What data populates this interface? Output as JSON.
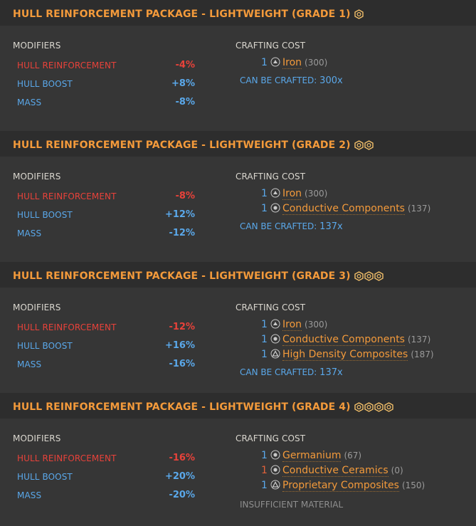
{
  "labels": {
    "modifiers": "MODIFIERS",
    "crafting_cost": "CRAFTING COST",
    "can_be_crafted": "CAN BE CRAFTED:"
  },
  "colors": {
    "title": "#f39a3b",
    "negative": "#e8423a",
    "positive": "#5aa8ea",
    "header_bg": "#2d2d2d",
    "panel_bg": "#363636"
  },
  "blueprints": [
    {
      "title": "HULL REINFORCEMENT PACKAGE - LIGHTWEIGHT (GRADE 1)",
      "grade": 1,
      "modifiers": [
        {
          "name": "HULL REINFORCEMENT",
          "value": "-4%",
          "tone": "negative"
        },
        {
          "name": "HULL BOOST",
          "value": "+8%",
          "tone": "positive"
        },
        {
          "name": "MASS",
          "value": "-8%",
          "tone": "positive"
        }
      ],
      "costs": [
        {
          "qty": "1",
          "name": "Iron",
          "stock": "(300)",
          "icon": "raw-material-icon",
          "warn": false
        }
      ],
      "footer": {
        "type": "craftable",
        "count": "300x"
      }
    },
    {
      "title": "HULL REINFORCEMENT PACKAGE - LIGHTWEIGHT (GRADE 2)",
      "grade": 2,
      "modifiers": [
        {
          "name": "HULL REINFORCEMENT",
          "value": "-8%",
          "tone": "negative"
        },
        {
          "name": "HULL BOOST",
          "value": "+12%",
          "tone": "positive"
        },
        {
          "name": "MASS",
          "value": "-12%",
          "tone": "positive"
        }
      ],
      "costs": [
        {
          "qty": "1",
          "name": "Iron",
          "stock": "(300)",
          "icon": "raw-material-icon",
          "warn": false
        },
        {
          "qty": "1",
          "name": "Conductive Components",
          "stock": "(137)",
          "icon": "manufactured-material-icon",
          "warn": false
        }
      ],
      "footer": {
        "type": "craftable",
        "count": "137x"
      }
    },
    {
      "title": "HULL REINFORCEMENT PACKAGE - LIGHTWEIGHT (GRADE 3)",
      "grade": 3,
      "modifiers": [
        {
          "name": "HULL REINFORCEMENT",
          "value": "-12%",
          "tone": "negative"
        },
        {
          "name": "HULL BOOST",
          "value": "+16%",
          "tone": "positive"
        },
        {
          "name": "MASS",
          "value": "-16%",
          "tone": "positive"
        }
      ],
      "costs": [
        {
          "qty": "1",
          "name": "Iron",
          "stock": "(300)",
          "icon": "raw-material-icon",
          "warn": false
        },
        {
          "qty": "1",
          "name": "Conductive Components",
          "stock": "(137)",
          "icon": "manufactured-material-icon",
          "warn": false
        },
        {
          "qty": "1",
          "name": "High Density Composites",
          "stock": "(187)",
          "icon": "encoded-material-icon",
          "warn": false
        }
      ],
      "footer": {
        "type": "craftable",
        "count": "137x"
      }
    },
    {
      "title": "HULL REINFORCEMENT PACKAGE - LIGHTWEIGHT (GRADE 4)",
      "grade": 4,
      "modifiers": [
        {
          "name": "HULL REINFORCEMENT",
          "value": "-16%",
          "tone": "negative"
        },
        {
          "name": "HULL BOOST",
          "value": "+20%",
          "tone": "positive"
        },
        {
          "name": "MASS",
          "value": "-20%",
          "tone": "positive"
        }
      ],
      "costs": [
        {
          "qty": "1",
          "name": "Germanium",
          "stock": "(67)",
          "icon": "manufactured-material-icon",
          "warn": false
        },
        {
          "qty": "1",
          "name": "Conductive Ceramics",
          "stock": "(0)",
          "icon": "manufactured-material-icon",
          "warn": true
        },
        {
          "qty": "1",
          "name": "Proprietary Composites",
          "stock": "(150)",
          "icon": "encoded-material-icon",
          "warn": false
        }
      ],
      "footer": {
        "type": "insufficient",
        "text": "INSUFFICIENT MATERIAL"
      }
    }
  ]
}
